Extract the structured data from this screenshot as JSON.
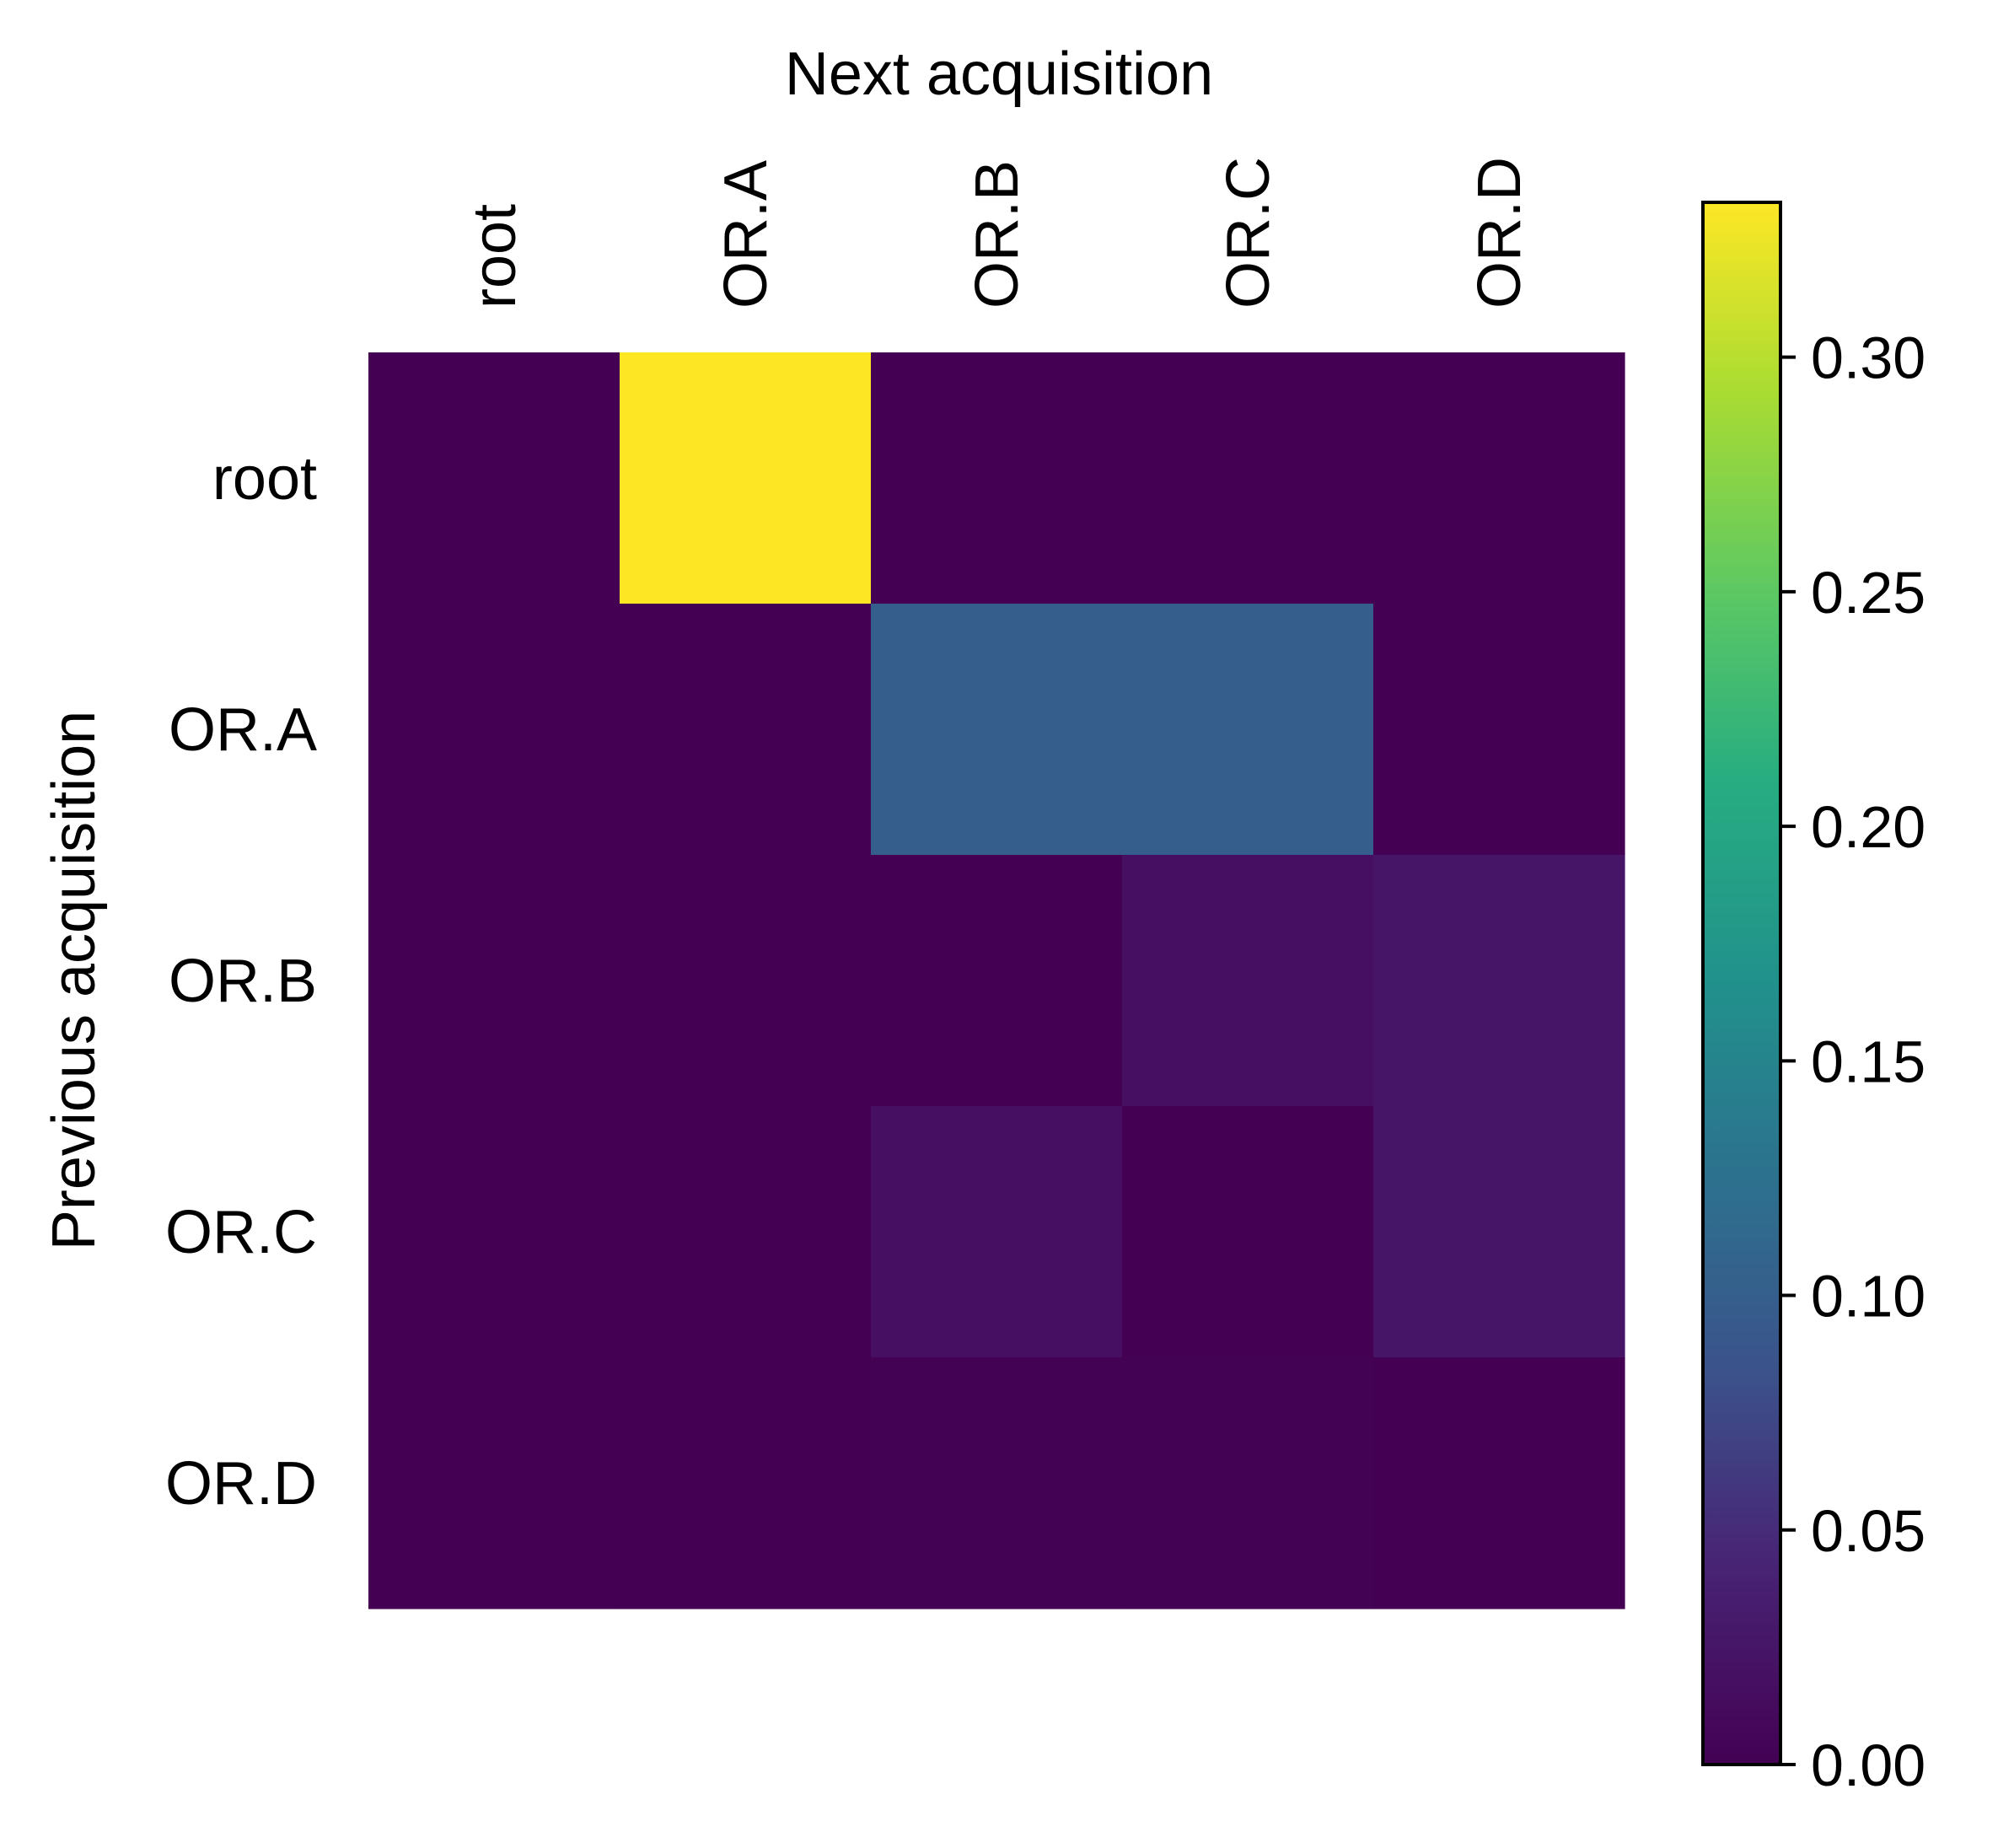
{
  "chart_data": {
    "type": "heatmap",
    "title": "",
    "xlabel": "Next acquisition",
    "ylabel": "Previous acquisition",
    "x_categories": [
      "root",
      "OR.A",
      "OR.B",
      "OR.C",
      "OR.D"
    ],
    "y_categories": [
      "root",
      "OR.A",
      "OR.B",
      "OR.C",
      "OR.D"
    ],
    "values": [
      [
        0.0,
        0.333,
        0.0,
        0.0,
        0.0
      ],
      [
        0.0,
        0.0,
        0.1,
        0.1,
        0.0
      ],
      [
        0.0,
        0.0,
        0.0,
        0.017,
        0.025
      ],
      [
        0.0,
        0.0,
        0.017,
        0.0,
        0.025
      ],
      [
        0.0,
        0.0,
        0.001,
        0.001,
        0.0
      ]
    ],
    "colormap": "viridis",
    "colorbar": {
      "min": 0.0,
      "max": 0.333,
      "ticks": [
        0.0,
        0.05,
        0.1,
        0.15,
        0.2,
        0.25,
        0.3
      ],
      "tick_labels": [
        "0.00",
        "0.05",
        "0.10",
        "0.15",
        "0.20",
        "0.25",
        "0.30"
      ]
    },
    "x_axis_position": "top",
    "grid": false
  }
}
